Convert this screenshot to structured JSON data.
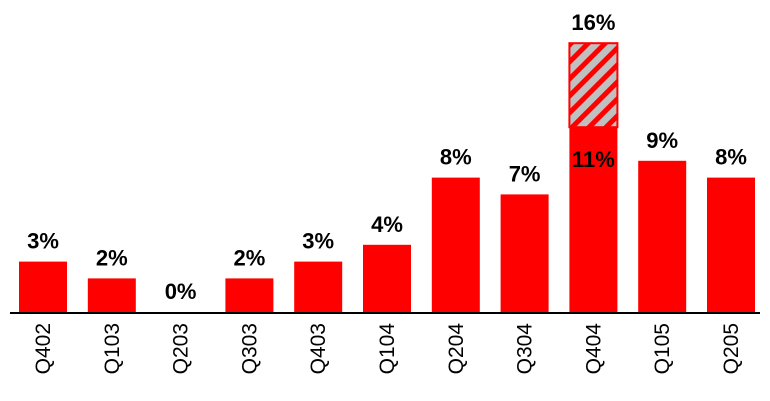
{
  "chart_data": {
    "type": "bar",
    "categories": [
      "Q402",
      "Q103",
      "Q203",
      "Q303",
      "Q403",
      "Q104",
      "Q204",
      "Q304",
      "Q404",
      "Q105",
      "Q205"
    ],
    "values": [
      3,
      2,
      0,
      2,
      3,
      4,
      8,
      7,
      11,
      9,
      8
    ],
    "data_labels": [
      "3%",
      "2%",
      "0%",
      "2%",
      "3%",
      "4%",
      "8%",
      "7%",
      "11%",
      "9%",
      "8%"
    ],
    "stacked_extra": {
      "category": "Q404",
      "base_value": 11,
      "total_value": 16,
      "total_label": "16%",
      "style": "hatched"
    },
    "ylim": [
      0,
      16
    ],
    "title": "",
    "xlabel": "",
    "ylabel": "",
    "grid": false,
    "legend": "none",
    "colors": {
      "bar": "#ff0000",
      "hatch": "#c0c0c0",
      "axis": "#000000"
    }
  }
}
